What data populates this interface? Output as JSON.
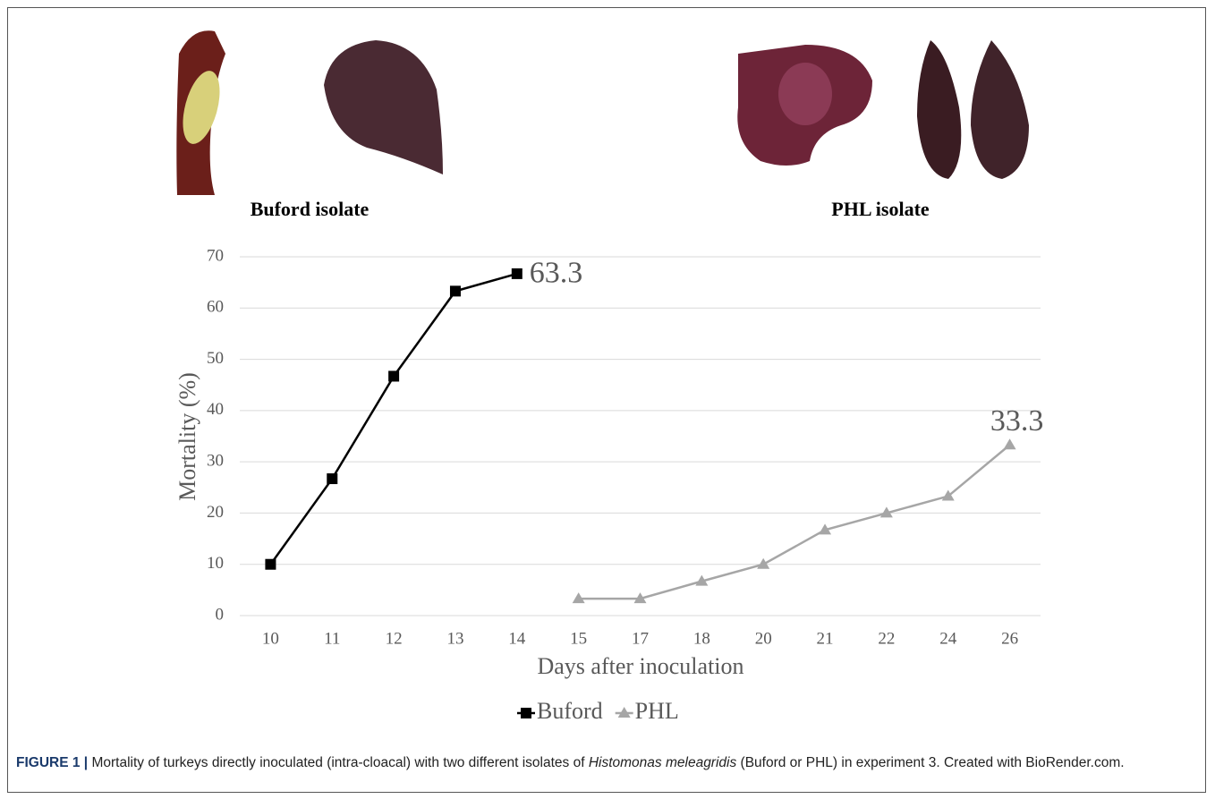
{
  "figure": {
    "images": [
      {
        "label": "Buford isolate"
      },
      {
        "label": "PHL isolate"
      }
    ],
    "caption": {
      "label": "FIGURE 1 |",
      "text_before": "Mortality of turkeys directly inoculated (intra-cloacal) with two different isolates of",
      "italic": "Histomonas meleagridis",
      "text_after": "(Buford or PHL) in experiment 3. Created with BioRender.com."
    }
  },
  "chart_data": {
    "type": "line",
    "x_label": "Days after inoculation",
    "y_label": "Mortality (%)",
    "categories": [
      "10",
      "11",
      "12",
      "13",
      "14",
      "15",
      "17",
      "18",
      "20",
      "21",
      "22",
      "24",
      "26"
    ],
    "series": [
      {
        "name": "Buford",
        "color": "#000000",
        "marker": "square",
        "values": [
          10,
          26.7,
          46.7,
          63.3,
          66.7,
          null,
          null,
          null,
          null,
          null,
          null,
          null,
          null
        ]
      },
      {
        "name": "PHL",
        "color": "#a6a6a6",
        "marker": "triangle",
        "values": [
          null,
          null,
          null,
          null,
          null,
          3.3,
          3.3,
          6.7,
          10,
          16.7,
          20,
          23.3,
          33.3
        ]
      }
    ],
    "annotations": [
      "63.3",
      "33.3"
    ],
    "ylim": [
      0,
      70
    ],
    "yticks": [
      0,
      10,
      20,
      30,
      40,
      50,
      60,
      70
    ],
    "grid": true,
    "legend": "bottom"
  }
}
